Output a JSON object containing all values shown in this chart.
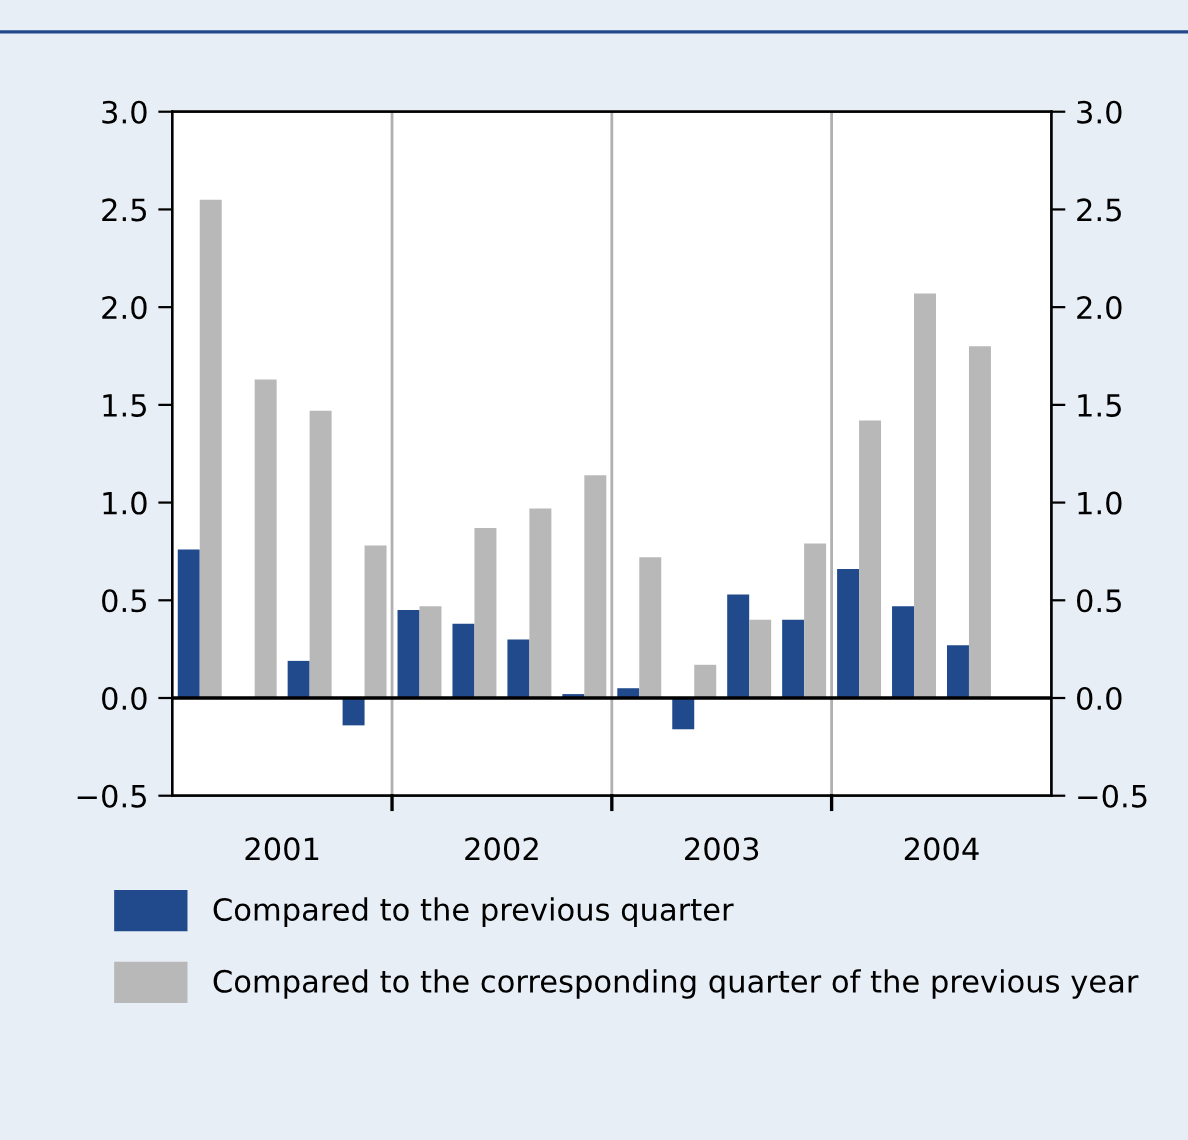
{
  "chart_data": {
    "type": "bar",
    "categories": [
      null,
      null,
      null,
      null,
      null,
      null,
      null,
      null,
      null,
      null,
      null,
      null,
      null,
      null,
      null,
      null
    ],
    "series": [
      {
        "name": "Compared to the previous quarter",
        "color": "#204a8c",
        "values": [
          0.76,
          0.0,
          0.19,
          -0.14,
          0.45,
          0.38,
          0.3,
          0.02,
          0.05,
          -0.16,
          0.53,
          0.4,
          0.66,
          0.47,
          0.27,
          null
        ]
      },
      {
        "name": "Compared to the corresponding quarter of the previous year",
        "color": "#b8b8b8",
        "values": [
          2.55,
          1.63,
          1.47,
          0.78,
          0.47,
          0.87,
          0.97,
          1.14,
          0.72,
          0.17,
          0.4,
          0.79,
          1.42,
          2.07,
          1.8,
          null
        ]
      }
    ],
    "annotations": [
      "2001",
      "2002",
      "2003",
      "2004"
    ],
    "ylim": [
      -0.5,
      3.0
    ],
    "yticks": [
      {
        "value": -0.5,
        "label": "−0.5"
      },
      {
        "value": 0,
        "label": "0.0"
      },
      {
        "value": 0.5,
        "label": "0.5"
      },
      {
        "value": 1,
        "label": "1.0"
      },
      {
        "value": 1.5,
        "label": "1.5"
      },
      {
        "value": 2,
        "label": "2.0"
      },
      {
        "value": 2.5,
        "label": "2.5"
      },
      {
        "value": 3,
        "label": "3.0"
      }
    ],
    "y2lim": [
      -0.5,
      3.0
    ],
    "y2ticks": [
      {
        "value": -0.5,
        "label": "−0.5"
      },
      {
        "value": 0,
        "label": "0.0"
      },
      {
        "value": 0.5,
        "label": "0.5"
      },
      {
        "value": 1,
        "label": "1.0"
      },
      {
        "value": 1.5,
        "label": "1.5"
      },
      {
        "value": 2,
        "label": "2.0"
      },
      {
        "value": 2.5,
        "label": "2.5"
      },
      {
        "value": 3,
        "label": "3.0"
      }
    ],
    "ref_lines": [
      {
        "axis": "y",
        "value": 0,
        "color": "#000000"
      }
    ],
    "legend": "bottom"
  }
}
